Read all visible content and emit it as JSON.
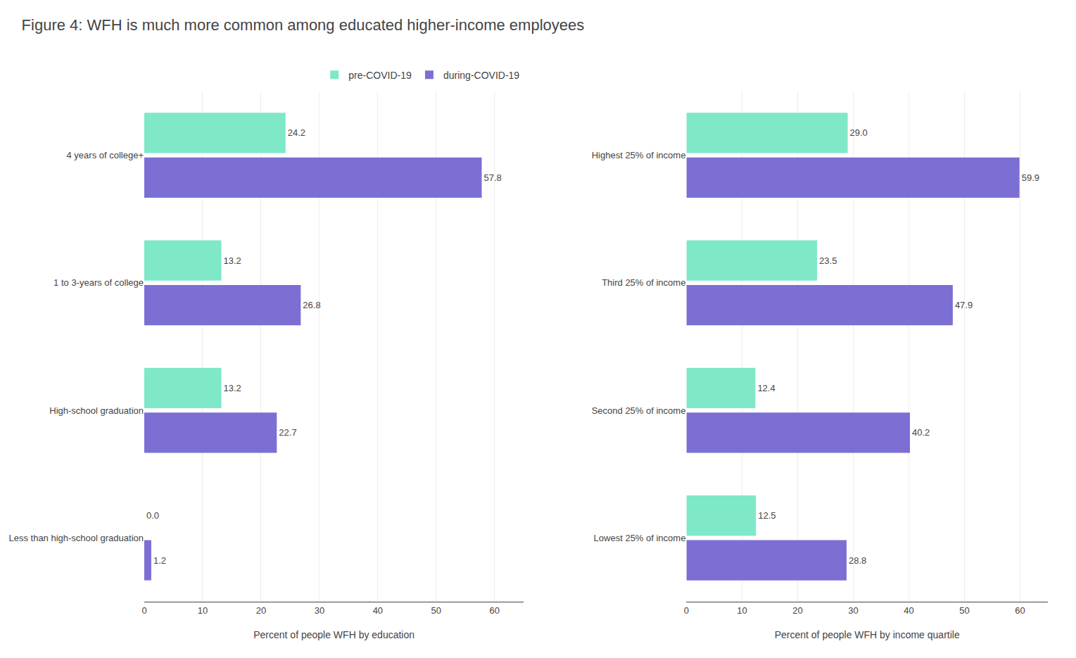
{
  "chart_data": [
    {
      "type": "bar",
      "title": "Figure 4: WFH is much more common among educated higher-income employees",
      "orientation": "horizontal",
      "categories": [
        "4 years of college+",
        "1 to 3-years of college",
        "High-school graduation",
        "Less than high-school graduation"
      ],
      "series": [
        {
          "name": "pre-COVID-19",
          "color": "#7ee8c8",
          "values": [
            24.2,
            13.2,
            13.2,
            0.0
          ],
          "value_labels": [
            "24.2",
            "13.2",
            "13.2",
            "0.0"
          ]
        },
        {
          "name": "during-COVID-19",
          "color": "#7b6fd4",
          "values": [
            57.8,
            26.8,
            22.7,
            1.2
          ]
        }
      ],
      "xlabel": "Percent of people WFH by education",
      "xlim": [
        0,
        65
      ],
      "xticks": [
        0,
        10,
        20,
        30,
        40,
        50,
        60
      ],
      "grid": true,
      "legend": "upper right",
      "data_labels": true
    },
    {
      "type": "bar",
      "orientation": "horizontal",
      "categories": [
        "Highest 25% of income",
        "Third 25% of income",
        "Second 25% of income",
        "Lowest 25% of income"
      ],
      "series": [
        {
          "name": "pre-COVID-19",
          "color": "#7ee8c8",
          "values": [
            29.0,
            23.5,
            12.4,
            12.5
          ],
          "value_labels": [
            "29.0",
            "23.5",
            "12.4",
            "12.5"
          ]
        },
        {
          "name": "during-COVID-19",
          "color": "#7b6fd4",
          "values": [
            59.9,
            47.9,
            40.2,
            28.8
          ]
        }
      ],
      "xlabel": "Percent of people WFH by income quartile",
      "xlim": [
        0,
        65
      ],
      "xticks": [
        0,
        10,
        20,
        30,
        40,
        50,
        60
      ],
      "grid": true,
      "data_labels": true
    }
  ]
}
